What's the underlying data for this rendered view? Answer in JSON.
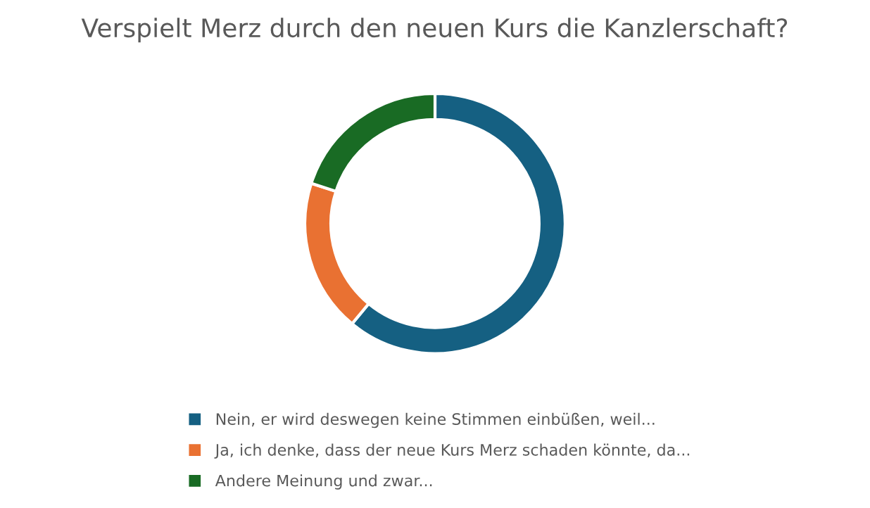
{
  "chart_data": {
    "type": "donut",
    "title": "Verspielt Merz durch den neuen Kurs die Kanzlerschaft?",
    "categories": [
      "Nein, er wird deswegen keine Stimmen einbüßen, weil...",
      "Ja, ich denke, dass der neue Kurs Merz schaden könnte, da...",
      "Andere Meinung und zwar..."
    ],
    "values": [
      61,
      19,
      20
    ],
    "colors": [
      "#156082",
      "#e97132",
      "#196b24"
    ],
    "legend": "bottom"
  }
}
